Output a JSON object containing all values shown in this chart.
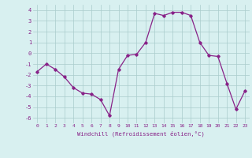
{
  "x": [
    0,
    1,
    2,
    3,
    4,
    5,
    6,
    7,
    8,
    9,
    10,
    11,
    12,
    13,
    14,
    15,
    16,
    17,
    18,
    19,
    20,
    21,
    22,
    23
  ],
  "y": [
    -1.7,
    -1.0,
    -1.5,
    -2.2,
    -3.2,
    -3.7,
    -3.8,
    -4.3,
    -5.8,
    -1.5,
    -0.2,
    -0.1,
    1.0,
    3.7,
    3.5,
    3.8,
    3.8,
    3.5,
    1.0,
    -0.2,
    -0.3,
    -2.8,
    -5.2,
    -3.5
  ],
  "line_color": "#882288",
  "marker": "D",
  "marker_size": 1.8,
  "bg_color": "#d8f0f0",
  "grid_color": "#aacccc",
  "xlabel": "Windchill (Refroidissement éolien,°C)",
  "xlim": [
    -0.5,
    23.5
  ],
  "ylim": [
    -6.5,
    4.5
  ],
  "yticks": [
    -6,
    -5,
    -4,
    -3,
    -2,
    -1,
    0,
    1,
    2,
    3,
    4
  ],
  "xtick_labels": [
    "0",
    "1",
    "2",
    "3",
    "4",
    "5",
    "6",
    "7",
    "8",
    "9",
    "10",
    "11",
    "12",
    "13",
    "14",
    "15",
    "16",
    "17",
    "18",
    "19",
    "20",
    "21",
    "22",
    "23"
  ]
}
